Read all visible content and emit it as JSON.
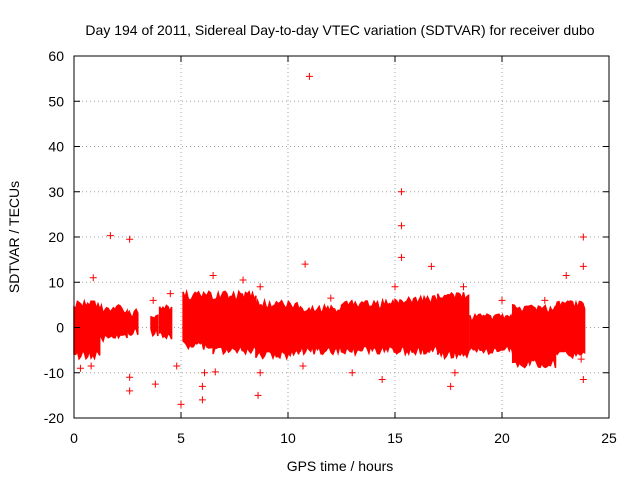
{
  "chart_data": {
    "type": "scatter",
    "title": "Day 194 of 2011, Sidereal Day-to-day VTEC variation (SDTVAR) for receiver dubo",
    "xlabel": "GPS time / hours",
    "ylabel": "SDTVAR / TECUs",
    "xlim": [
      0,
      25
    ],
    "ylim": [
      -20,
      60
    ],
    "x_ticks": [
      0,
      5,
      10,
      15,
      20,
      25
    ],
    "x_tick_labels": [
      "0",
      "5",
      "10",
      "15",
      "20",
      "25"
    ],
    "y_ticks": [
      -20,
      -10,
      0,
      10,
      20,
      30,
      40,
      50,
      60
    ],
    "y_tick_labels": [
      "-20",
      "-10",
      "0",
      "10",
      "20",
      "30",
      "40",
      "50",
      "60"
    ],
    "grid": true,
    "marker": "+",
    "color": "#ff0000",
    "bands": [
      {
        "x_start": 0.0,
        "x_end": 1.2,
        "low": -7,
        "high": 6
      },
      {
        "x_start": 1.2,
        "x_end": 2.5,
        "low": -3,
        "high": 5
      },
      {
        "x_start": 2.5,
        "x_end": 3.05,
        "low": -2,
        "high": 4
      },
      {
        "x_start": 3.6,
        "x_end": 3.95,
        "low": -2,
        "high": 3
      },
      {
        "x_start": 4.0,
        "x_end": 4.6,
        "low": -3,
        "high": 5
      },
      {
        "x_start": 5.1,
        "x_end": 6.5,
        "low": -5,
        "high": 8
      },
      {
        "x_start": 6.5,
        "x_end": 8.5,
        "low": -6,
        "high": 8
      },
      {
        "x_start": 8.5,
        "x_end": 10.5,
        "low": -7,
        "high": 6
      },
      {
        "x_start": 10.5,
        "x_end": 12.5,
        "low": -6,
        "high": 5
      },
      {
        "x_start": 12.5,
        "x_end": 15.0,
        "low": -6,
        "high": 6
      },
      {
        "x_start": 15.0,
        "x_end": 17.0,
        "low": -6,
        "high": 7
      },
      {
        "x_start": 17.0,
        "x_end": 18.5,
        "low": -7,
        "high": 8
      },
      {
        "x_start": 18.5,
        "x_end": 20.5,
        "low": -6,
        "high": 3
      },
      {
        "x_start": 20.5,
        "x_end": 22.5,
        "low": -9,
        "high": 5
      },
      {
        "x_start": 22.5,
        "x_end": 23.9,
        "low": -7,
        "high": 6
      }
    ],
    "outliers": [
      {
        "x": 11.0,
        "y": 55.5
      },
      {
        "x": 15.3,
        "y": 30.0
      },
      {
        "x": 15.3,
        "y": 22.5
      },
      {
        "x": 15.3,
        "y": 15.5
      },
      {
        "x": 1.7,
        "y": 20.3
      },
      {
        "x": 2.6,
        "y": 19.5
      },
      {
        "x": 2.6,
        "y": -11.0
      },
      {
        "x": 2.6,
        "y": -14.0
      },
      {
        "x": 23.8,
        "y": 20.0
      },
      {
        "x": 23.8,
        "y": 13.5
      },
      {
        "x": 23.8,
        "y": -11.5
      },
      {
        "x": 23.7,
        "y": -7.0
      },
      {
        "x": 10.8,
        "y": 14.0
      },
      {
        "x": 10.7,
        "y": -8.5
      },
      {
        "x": 16.7,
        "y": 13.5
      },
      {
        "x": 23.0,
        "y": 11.5
      },
      {
        "x": 20.0,
        "y": 6.0
      },
      {
        "x": 5.0,
        "y": -17.0
      },
      {
        "x": 6.0,
        "y": -16.0
      },
      {
        "x": 6.0,
        "y": -13.0
      },
      {
        "x": 6.1,
        "y": -10.0
      },
      {
        "x": 6.6,
        "y": -9.8
      },
      {
        "x": 8.6,
        "y": -15.0
      },
      {
        "x": 8.7,
        "y": -10.0
      },
      {
        "x": 8.7,
        "y": 9.0
      },
      {
        "x": 7.9,
        "y": 10.5
      },
      {
        "x": 3.8,
        "y": -12.5
      },
      {
        "x": 3.7,
        "y": 6.0
      },
      {
        "x": 4.5,
        "y": 7.5
      },
      {
        "x": 13.0,
        "y": -10.0
      },
      {
        "x": 14.4,
        "y": -11.5
      },
      {
        "x": 17.6,
        "y": -13.0
      },
      {
        "x": 17.8,
        "y": -10.0
      },
      {
        "x": 12.0,
        "y": 6.5
      },
      {
        "x": 0.9,
        "y": 11.0
      },
      {
        "x": 0.8,
        "y": -8.5
      },
      {
        "x": 0.3,
        "y": -9.0
      },
      {
        "x": 15.0,
        "y": 9.0
      },
      {
        "x": 18.2,
        "y": 9.0
      },
      {
        "x": 22.0,
        "y": 6.0
      },
      {
        "x": 6.5,
        "y": 11.5
      },
      {
        "x": 4.8,
        "y": -8.5
      }
    ]
  }
}
